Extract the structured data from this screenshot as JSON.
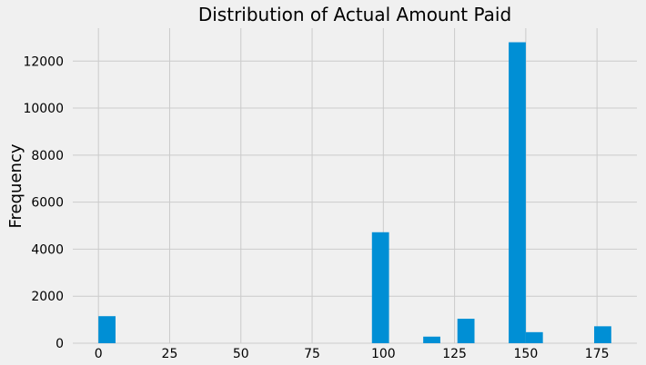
{
  "chart_data": {
    "type": "bar",
    "title": "Distribution of Actual Amount Paid",
    "xlabel": "",
    "ylabel": "Frequency",
    "xlim": [
      -9,
      189
    ],
    "ylim": [
      0,
      13400
    ],
    "x_ticks": [
      0,
      25,
      50,
      75,
      100,
      125,
      150,
      175
    ],
    "y_ticks": [
      0,
      2000,
      4000,
      6000,
      8000,
      10000,
      12000
    ],
    "grid": true,
    "bar_color": "#008fd5",
    "bins": [
      {
        "x0": 0,
        "x1": 6,
        "count": 1150
      },
      {
        "x0": 96,
        "x1": 102,
        "count": 4720
      },
      {
        "x0": 114,
        "x1": 120,
        "count": 280
      },
      {
        "x0": 126,
        "x1": 132,
        "count": 1040
      },
      {
        "x0": 144,
        "x1": 150,
        "count": 12800
      },
      {
        "x0": 150,
        "x1": 156,
        "count": 470
      },
      {
        "x0": 174,
        "x1": 180,
        "count": 720
      }
    ]
  }
}
